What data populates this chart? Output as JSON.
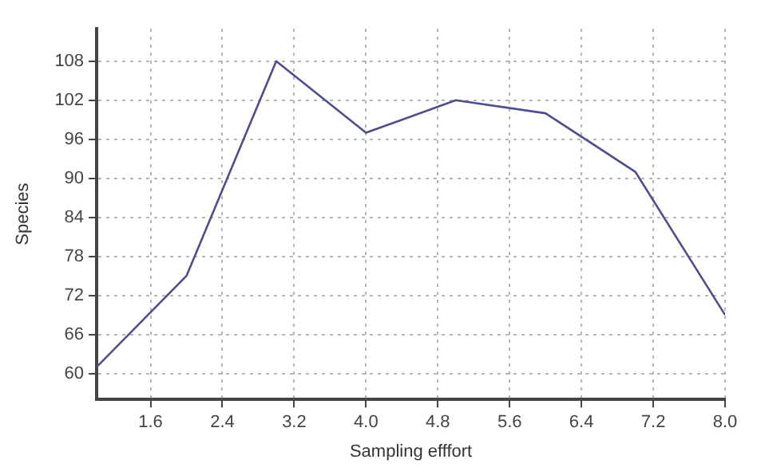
{
  "chart_data": {
    "type": "line",
    "xlabel": "Sampling efffort",
    "ylabel": "Species",
    "x": [
      1,
      2,
      3,
      4,
      5,
      6,
      7,
      8
    ],
    "series": [
      {
        "color": "#4d4d8f",
        "values": [
          61,
          75,
          108,
          97,
          102,
          100,
          91,
          69
        ]
      }
    ],
    "xlim": [
      1,
      8
    ],
    "xticks": [
      1.6,
      2.4,
      3.2,
      {
        "value": 4,
        "label": "4.0"
      },
      4.8,
      5.6,
      6.4,
      7.2,
      {
        "value": 8,
        "label": "8.0"
      }
    ],
    "ylim": [
      56,
      113
    ],
    "yticks": [
      60,
      66,
      72,
      78,
      84,
      90,
      96,
      102,
      108
    ],
    "grid": true,
    "legend": false,
    "marker": "none",
    "line_style": "solid"
  }
}
